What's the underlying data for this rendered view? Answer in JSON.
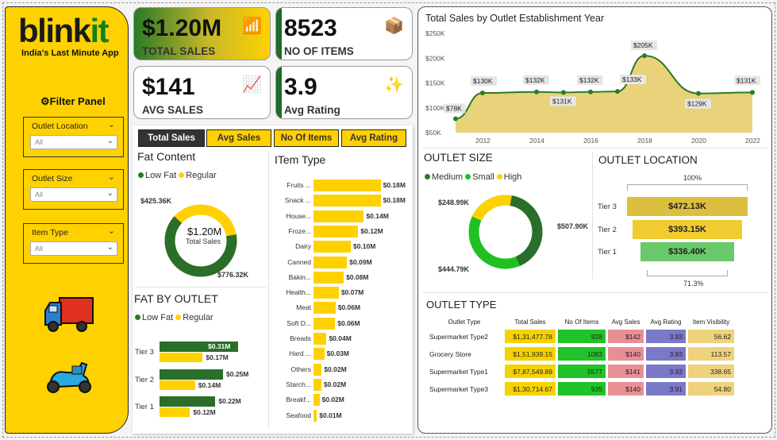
{
  "brand": {
    "logo_a": "blink",
    "logo_b": "it",
    "tagline": "India's Last Minute App"
  },
  "filters": {
    "title": "Filter Panel",
    "items": [
      {
        "label": "Outlet Location",
        "value": "All"
      },
      {
        "label": "Outlet Size",
        "value": "All"
      },
      {
        "label": "Item Type",
        "value": "All"
      }
    ]
  },
  "kpis": [
    {
      "value": "$1.20M",
      "label": "TOTAL SALES"
    },
    {
      "value": "8523",
      "label": "NO OF ITEMS"
    },
    {
      "value": "$141",
      "label": "AVG SALES"
    },
    {
      "value": "3.9",
      "label": "Avg Rating"
    }
  ],
  "tabs": [
    "Total Sales",
    "Avg Sales",
    "No Of Items",
    "Avg Rating"
  ],
  "fat_content": {
    "title": "Fat Content",
    "legend": [
      "Low Fat",
      "Regular"
    ],
    "center_value": "$1.20M",
    "center_label": "Total Sales",
    "low_fat": "$776.32K",
    "regular": "$425.36K"
  },
  "fat_by_outlet": {
    "title": "FAT BY OUTLET",
    "legend": [
      "Low Fat",
      "Regular"
    ],
    "rows": [
      {
        "tier": "Tier 3",
        "low": "$0.31M",
        "reg": "$0.17M",
        "lowv": 0.31,
        "regv": 0.17
      },
      {
        "tier": "Tier 2",
        "low": "$0.25M",
        "reg": "$0.14M",
        "lowv": 0.25,
        "regv": 0.14
      },
      {
        "tier": "Tier 1",
        "low": "$0.22M",
        "reg": "$0.12M",
        "lowv": 0.22,
        "regv": 0.12
      }
    ]
  },
  "item_type": {
    "title": "ITem Type",
    "rows": [
      {
        "name": "Fruits ...",
        "label": "$0.18M",
        "v": 0.18
      },
      {
        "name": "Snack ...",
        "label": "$0.18M",
        "v": 0.18
      },
      {
        "name": "House...",
        "label": "$0.14M",
        "v": 0.135
      },
      {
        "name": "Froze...",
        "label": "$0.12M",
        "v": 0.12
      },
      {
        "name": "Dairy",
        "label": "$0.10M",
        "v": 0.1
      },
      {
        "name": "Canned",
        "label": "$0.09M",
        "v": 0.09
      },
      {
        "name": "Bakin...",
        "label": "$0.08M",
        "v": 0.081
      },
      {
        "name": "Health...",
        "label": "$0.07M",
        "v": 0.068
      },
      {
        "name": "Meat",
        "label": "$0.06M",
        "v": 0.059
      },
      {
        "name": "Soft D...",
        "label": "$0.06M",
        "v": 0.058
      },
      {
        "name": "Breads",
        "label": "$0.04M",
        "v": 0.035
      },
      {
        "name": "Hard ...",
        "label": "$0.03M",
        "v": 0.029
      },
      {
        "name": "Others",
        "label": "$0.02M",
        "v": 0.022
      },
      {
        "name": "Starch...",
        "label": "$0.02M",
        "v": 0.021
      },
      {
        "name": "Breakf...",
        "label": "$0.02M",
        "v": 0.016
      },
      {
        "name": "Seafood",
        "label": "$0.01M",
        "v": 0.009
      }
    ]
  },
  "chart_data": {
    "type": "area",
    "title": "Total Sales by Outlet Establishment Year",
    "x": [
      2011,
      2012,
      2014,
      2015,
      2016,
      2017,
      2018,
      2020,
      2022
    ],
    "values": [
      78,
      130,
      132,
      131,
      132,
      133,
      205,
      129,
      131
    ],
    "labels": [
      "$78K",
      "$130K",
      "$132K",
      "$131K",
      "$132K",
      "$133K",
      "$205K",
      "$129K",
      "$131K"
    ],
    "yticks": [
      "$50K",
      "$100K",
      "$150K",
      "$200K",
      "$250K"
    ],
    "ylim": [
      50,
      250
    ],
    "xticks": [
      "2012",
      "2014",
      "2016",
      "2018",
      "2020",
      "2022"
    ]
  },
  "outlet_size": {
    "title": "OUTLET SIZE",
    "legend": [
      "Medium",
      "Small",
      "High"
    ],
    "medium": "$507.90K",
    "small": "$444.79K",
    "high": "$248.99K"
  },
  "outlet_location": {
    "title": "OUTLET LOCATION",
    "top_pct": "100%",
    "bottom_pct": "71.3%",
    "rows": [
      {
        "tier": "Tier 3",
        "value": "$472.13K",
        "color": "#ddbf3f"
      },
      {
        "tier": "Tier 2",
        "value": "$393.15K",
        "color": "#f0cc30"
      },
      {
        "tier": "Tier 1",
        "value": "$336.40K",
        "color": "#6ac96a"
      }
    ]
  },
  "outlet_type": {
    "title": "OUTLET TYPE",
    "headers": [
      "Outlet Type",
      "Total Sales",
      "No Of Items",
      "Avg Sales",
      "Avg Rating",
      "Item Visibility"
    ],
    "rows": [
      [
        "Supermarket Type2",
        "$1,31,477.78",
        "928",
        "$142",
        "3.93",
        "56.62"
      ],
      [
        "Grocery Store",
        "$1,51,939.15",
        "1083",
        "$140",
        "3.93",
        "113.57"
      ],
      [
        "Supermarket Type1",
        "$7,87,549.89",
        "5577",
        "$141",
        "3.92",
        "338.65"
      ],
      [
        "Supermarket Type3",
        "$1,30,714.67",
        "935",
        "$140",
        "3.91",
        "54.80"
      ]
    ]
  }
}
